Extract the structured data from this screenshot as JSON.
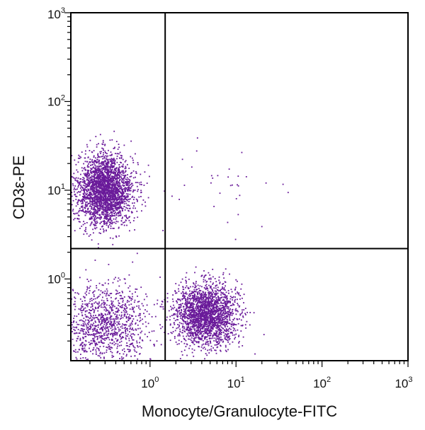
{
  "chart_data": {
    "type": "scatter",
    "title": "",
    "xlabel": "Monocyte/Granulocyte-FITC",
    "ylabel": "CD3ε-PE",
    "xscale": "log",
    "yscale": "log",
    "xlim": [
      0.12,
      1000
    ],
    "ylim": [
      0.12,
      1000
    ],
    "x_ticks": [
      {
        "value": 1,
        "base": "10",
        "exp": "0"
      },
      {
        "value": 10,
        "base": "10",
        "exp": "1"
      },
      {
        "value": 100,
        "base": "10",
        "exp": "2"
      },
      {
        "value": 1000,
        "base": "10",
        "exp": "3"
      }
    ],
    "y_ticks": [
      {
        "value": 1,
        "base": "10",
        "exp": "0"
      },
      {
        "value": 10,
        "base": "10",
        "exp": "1"
      },
      {
        "value": 100,
        "base": "10",
        "exp": "2"
      },
      {
        "value": 1000,
        "base": "10",
        "exp": "3"
      }
    ],
    "quadrant_gates": {
      "x": 1.5,
      "y": 2.2
    },
    "point_color": "#6a1b9a",
    "grid": false,
    "legend": "none",
    "populations": [
      {
        "center_x": 0.3,
        "center_y": 10,
        "spread_log_x": 0.16,
        "spread_log_y": 0.2,
        "approx_count": 2600
      },
      {
        "center_x": 4.5,
        "center_y": 0.4,
        "spread_log_x": 0.18,
        "spread_log_y": 0.17,
        "approx_count": 2200
      },
      {
        "center_x": 0.3,
        "center_y": 0.3,
        "spread_log_x": 0.25,
        "spread_log_y": 0.23,
        "approx_count": 1100
      },
      {
        "center_x": 6,
        "center_y": 10,
        "spread_log_x": 0.35,
        "spread_log_y": 0.3,
        "approx_count": 35
      }
    ]
  }
}
